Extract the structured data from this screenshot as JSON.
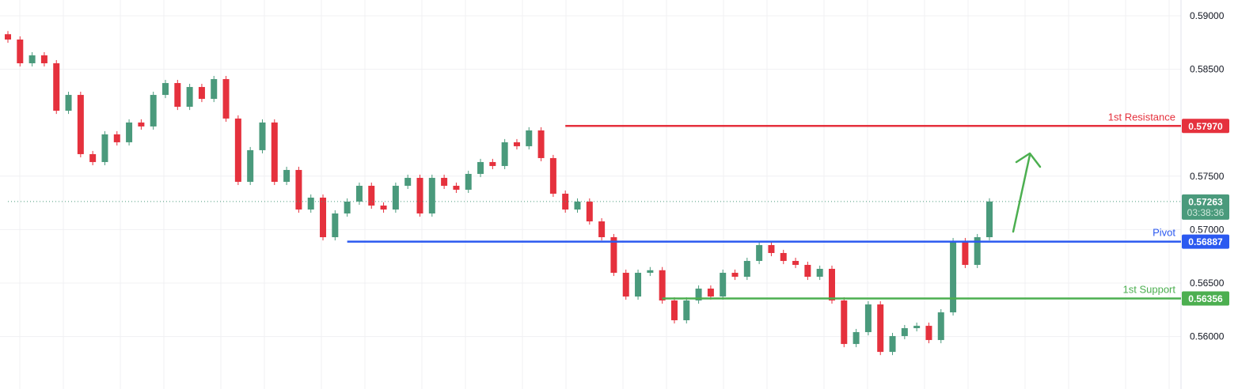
{
  "chart_data": {
    "type": "candlestick",
    "title": "",
    "xlabel": "",
    "ylabel": "",
    "ylim": [
      0.5578,
      0.5915
    ],
    "grid": true,
    "y_ticks": [
      "0.59000",
      "0.58500",
      "0.57500",
      "0.57000",
      "0.56500",
      "0.56000"
    ],
    "y_tick_values": [
      0.59,
      0.585,
      0.575,
      0.57,
      0.565,
      0.56
    ],
    "closes": [
      0.58778,
      0.58556,
      0.5863,
      0.58556,
      0.58112,
      0.5826,
      0.57706,
      0.57632,
      0.57891,
      0.57817,
      0.58002,
      0.57965,
      0.5826,
      0.58371,
      0.58149,
      0.58334,
      0.58223,
      0.58408,
      0.58039,
      0.57447,
      0.57743,
      0.58002,
      0.57447,
      0.57558,
      0.57188,
      0.57299,
      0.56929,
      0.57151,
      0.57262,
      0.5741,
      0.57225,
      0.57188,
      0.5741,
      0.57484,
      0.57151,
      0.57484,
      0.5741,
      0.57373,
      0.57521,
      0.57632,
      0.57595,
      0.57817,
      0.5778,
      0.57928,
      0.57669,
      0.57336,
      0.57188,
      0.57262,
      0.57077,
      0.56929,
      0.56596,
      0.56374,
      0.56596,
      0.5662,
      0.56337,
      0.56152,
      0.56337,
      0.56448,
      0.56374,
      0.56596,
      0.56559,
      0.56707,
      0.56855,
      0.56781,
      0.56707,
      0.5667,
      0.56559,
      0.56633,
      0.56337,
      0.5593,
      0.56041,
      0.563,
      0.55856,
      0.56004,
      0.56078,
      0.561,
      0.55967,
      0.56226,
      0.56892,
      0.5667,
      0.56929,
      0.57263
    ],
    "levels": [
      {
        "name": "1st Resistance",
        "value": 0.5797,
        "value_label": "0.57970",
        "color": "#e5313d",
        "start_index": 46
      },
      {
        "name": "Pivot",
        "value": 0.56887,
        "value_label": "0.56887",
        "color": "#2b59f0",
        "start_index": 28
      },
      {
        "name": "1st Support",
        "value": 0.56356,
        "value_label": "0.56356",
        "color": "#4caf50",
        "start_index": 54
      }
    ],
    "current_price": {
      "value": 0.57263,
      "label": "0.57263",
      "countdown": "03:38:36",
      "color": "#4a9a7c"
    },
    "arrow": {
      "direction": "up",
      "color": "#4caf50"
    },
    "colors": {
      "up": "#4a9a7c",
      "down": "#e5313d"
    }
  }
}
